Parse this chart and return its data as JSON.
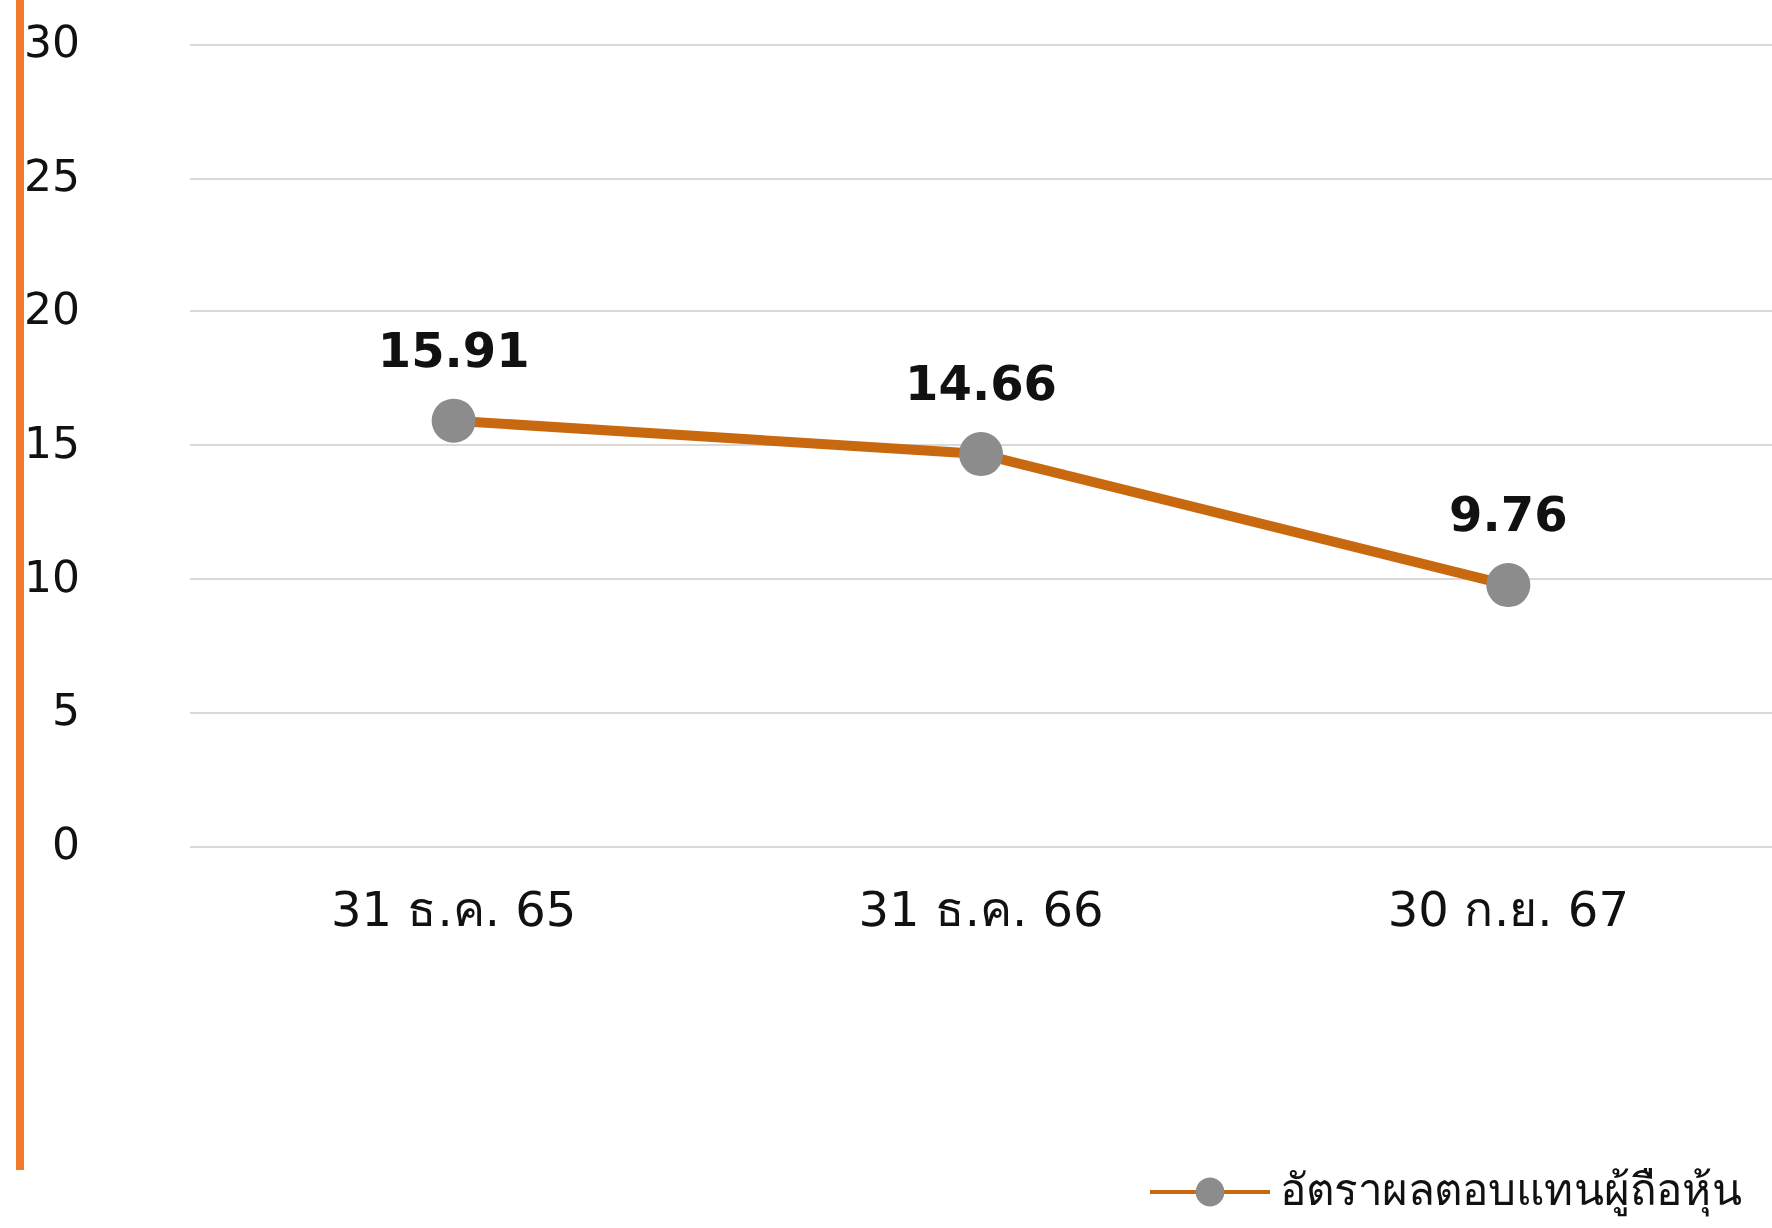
{
  "chart_data": {
    "type": "line",
    "categories": [
      "31 ธ.ค. 65",
      "31 ธ.ค. 66",
      "30 ก.ย. 67"
    ],
    "series": [
      {
        "name": "อัตราผลตอบแทนผู้ถือหุ้น",
        "color": "#c8680f",
        "values": [
          15.91,
          14.66,
          9.76
        ]
      }
    ],
    "ylim": [
      0,
      30
    ],
    "yticks": [
      0,
      5,
      10,
      15,
      20,
      25,
      30
    ],
    "grid": "y",
    "data_labels": true,
    "marker": "circle",
    "line_style": "solid",
    "legend": "bottom right"
  }
}
